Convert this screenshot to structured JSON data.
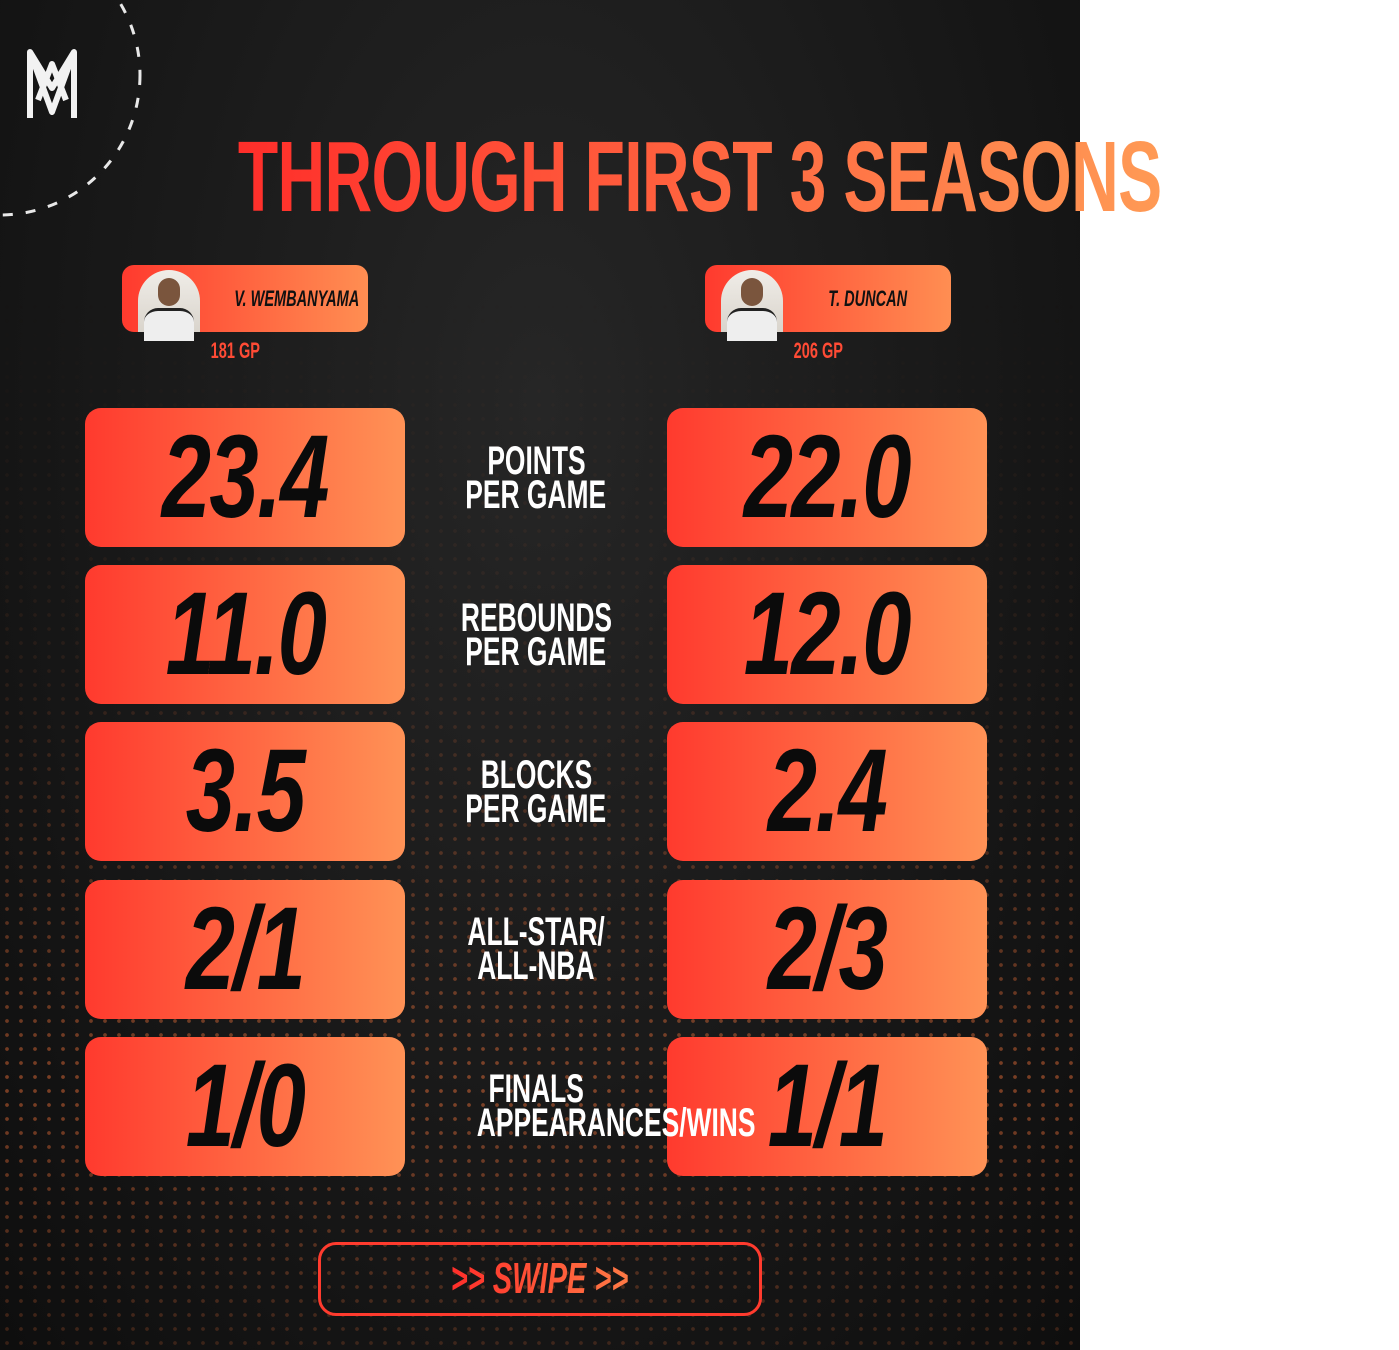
{
  "title": "THROUGH FIRST 3 SEASONS",
  "players": [
    {
      "name": "V. WEMBANYAMA",
      "games": "181 GP"
    },
    {
      "name": "T. DUNCAN",
      "games": "206 GP"
    }
  ],
  "rows": [
    {
      "left": "23.4",
      "label": [
        "POINTS",
        "PER GAME"
      ],
      "right": "22.0"
    },
    {
      "left": "11.0",
      "label": [
        "REBOUNDS",
        "PER GAME"
      ],
      "right": "12.0"
    },
    {
      "left": "3.5",
      "label": [
        "BLOCKS",
        "PER GAME"
      ],
      "right": "2.4"
    },
    {
      "left": "2/1",
      "label": [
        "ALL-STAR/",
        "ALL-NBA"
      ],
      "right": "2/3"
    },
    {
      "left": "1/0",
      "label": [
        "FINALS",
        "APPEARANCES/WINS"
      ],
      "right": "1/1"
    }
  ],
  "button": ">> SWIPE >>"
}
